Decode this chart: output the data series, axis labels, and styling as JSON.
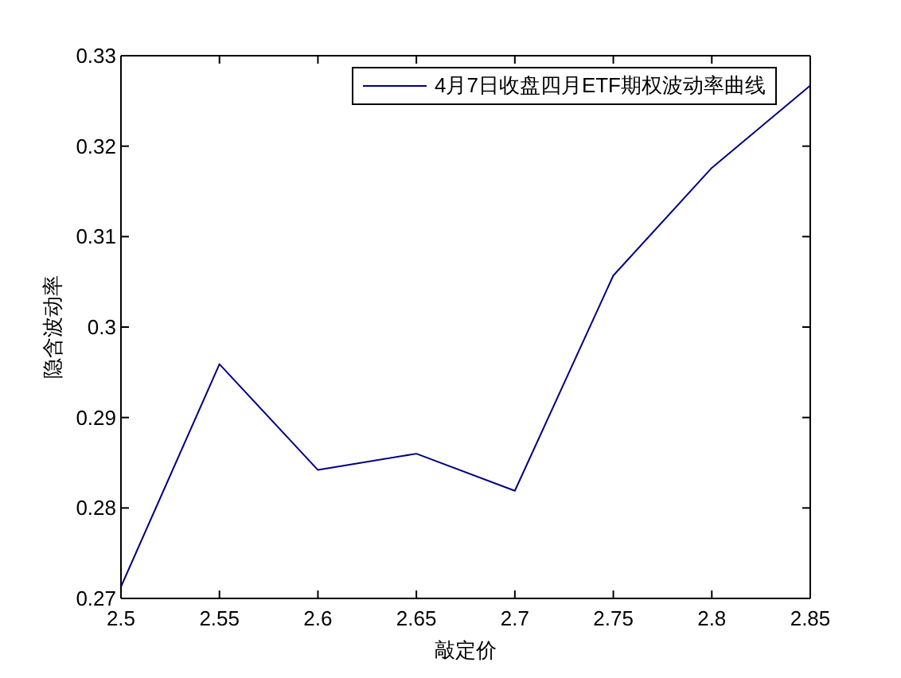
{
  "chart_data": {
    "type": "line",
    "x": [
      2.5,
      2.55,
      2.6,
      2.65,
      2.7,
      2.75,
      2.8,
      2.85
    ],
    "series": [
      {
        "name": "4月7日收盘四月ETF期权波动率曲线",
        "color": "#000080",
        "values": [
          0.2713,
          0.2959,
          0.2842,
          0.286,
          0.2819,
          0.3057,
          0.3176,
          0.3267
        ]
      }
    ],
    "xlabel": "敲定价",
    "ylabel": "隐含波动率",
    "xlim": [
      2.5,
      2.85
    ],
    "xticks": [
      2.5,
      2.55,
      2.6,
      2.65,
      2.7,
      2.75,
      2.8,
      2.85
    ],
    "ylim": [
      0.27,
      0.33
    ],
    "yticks": [
      0.27,
      0.28,
      0.29,
      0.3,
      0.31,
      0.32,
      0.33
    ],
    "legend": "top right",
    "marker": "none",
    "line_style": "solid"
  }
}
